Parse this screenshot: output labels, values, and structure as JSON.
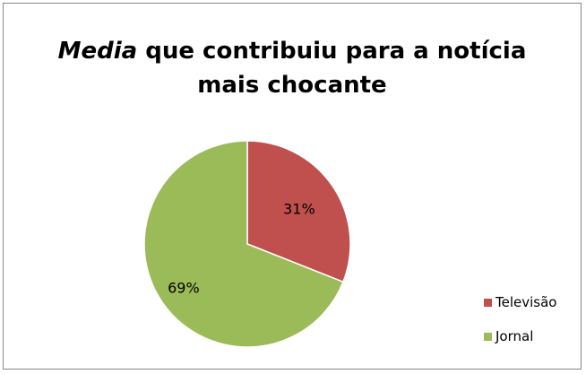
{
  "chart_data": {
    "type": "pie",
    "title_emphasis": "Media",
    "title_rest": " que contribuiu para a notícia",
    "title_line2": "mais chocante",
    "slices": [
      {
        "label": "Televisão",
        "value": 31,
        "display": "31%",
        "color": "#C0504D"
      },
      {
        "label": "Jornal",
        "value": 69,
        "display": "69%",
        "color": "#9BBB59"
      }
    ],
    "legend_position": "right"
  }
}
